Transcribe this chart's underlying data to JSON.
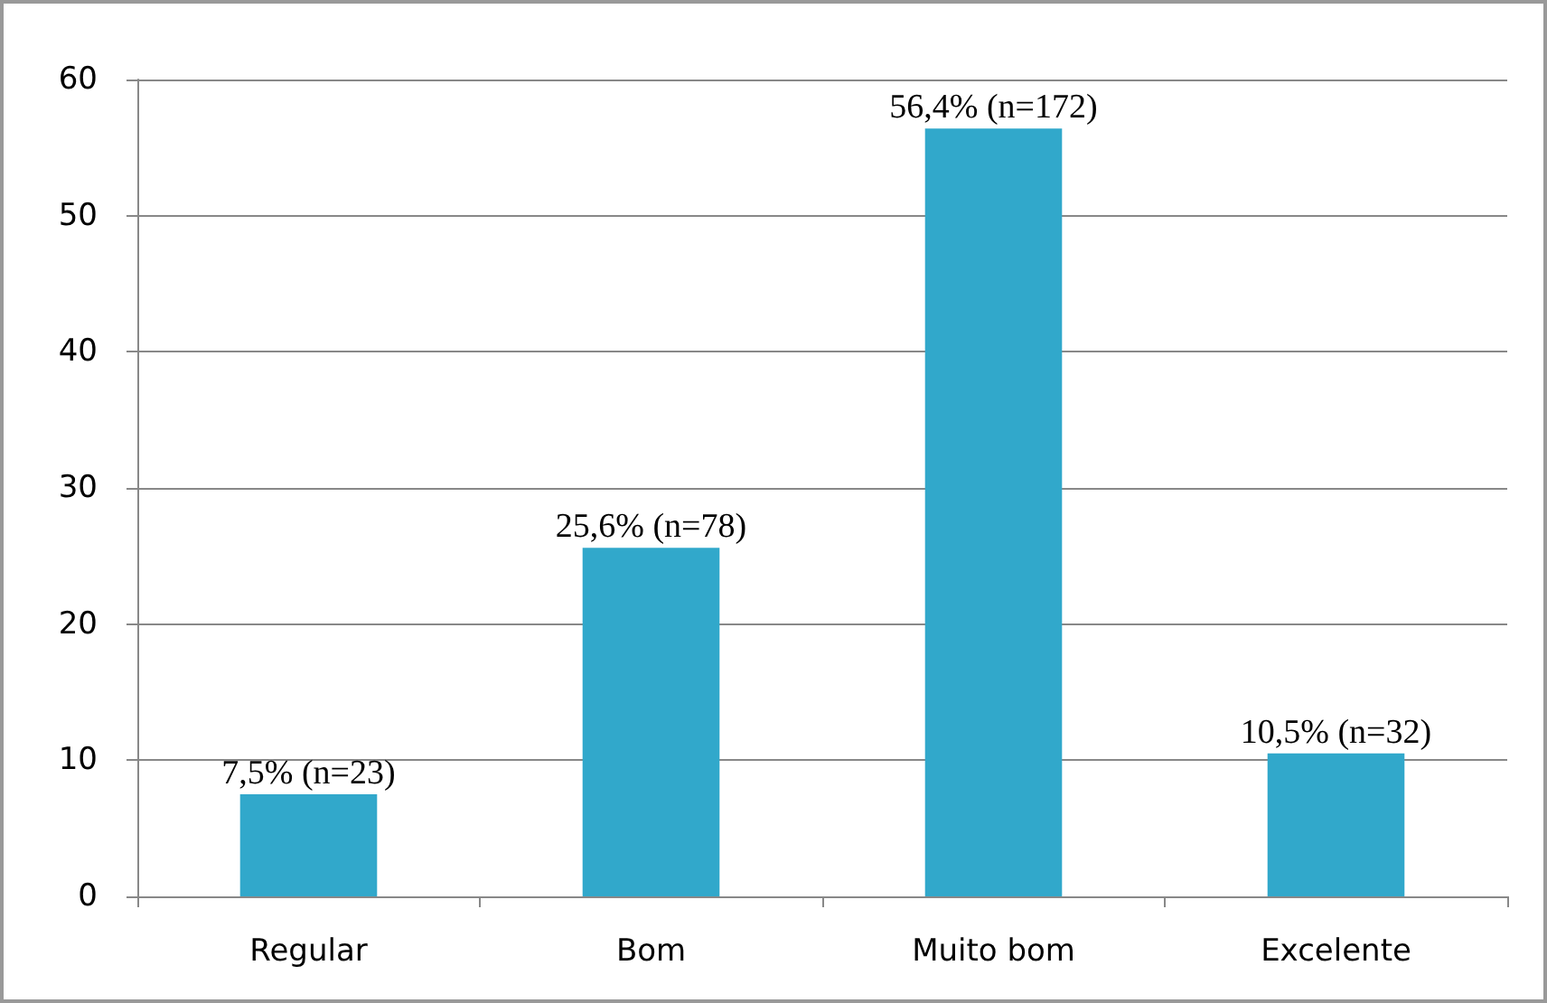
{
  "chart_data": {
    "type": "bar",
    "categories": [
      "Regular",
      "Bom",
      "Muito bom",
      "Excelente"
    ],
    "values": [
      7.5,
      25.6,
      56.4,
      10.5
    ],
    "value_labels": [
      "7,5% (n=23)",
      "25,6% (n=78)",
      "56,4% (n=172)",
      "10,5% (n=32)"
    ],
    "color": "#31a8cb",
    "ylim": [
      0,
      60
    ],
    "yticks": [
      0,
      10,
      20,
      30,
      40,
      50,
      60
    ],
    "grid": "y"
  }
}
